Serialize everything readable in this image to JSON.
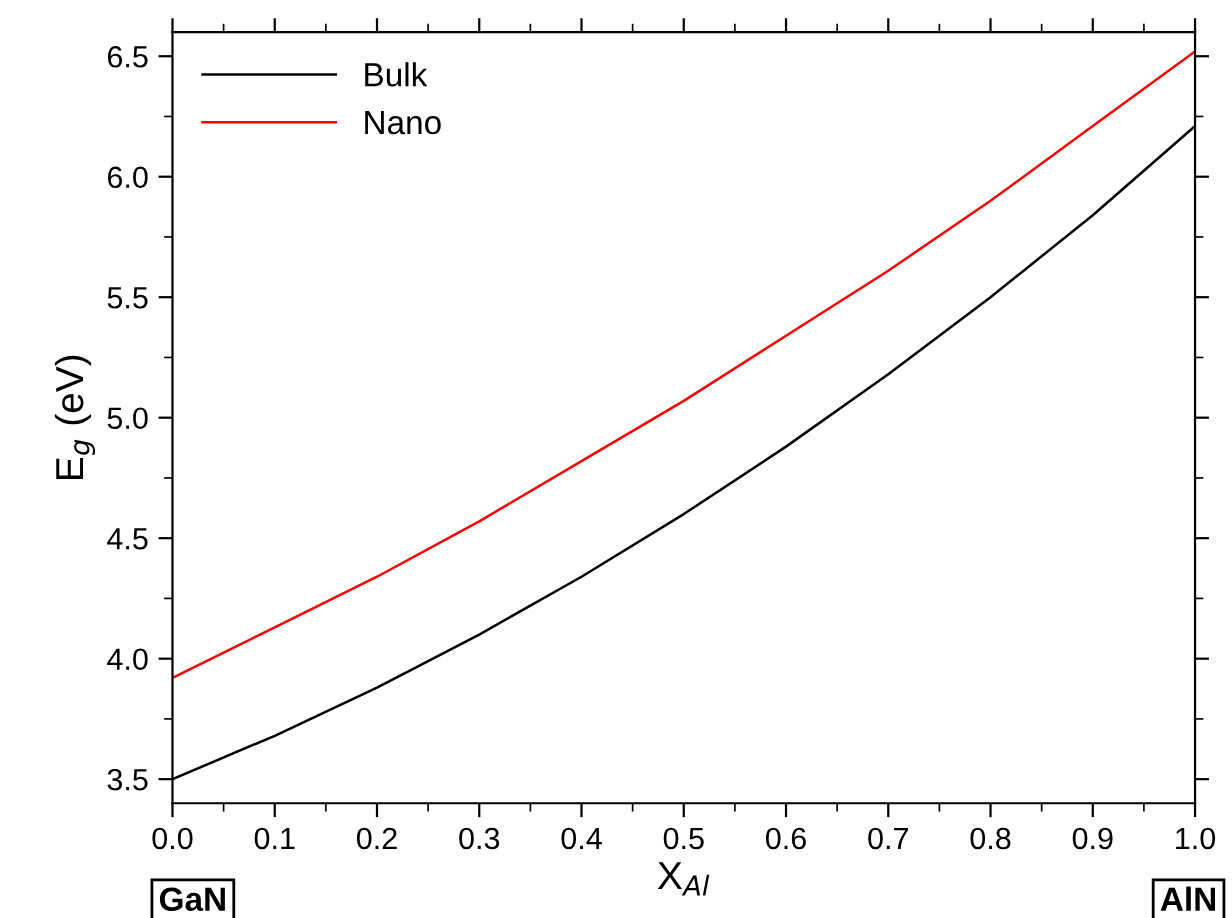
{
  "chart_data": {
    "type": "line",
    "xlabel": "X$_{Al}$",
    "ylabel": "E$_{g}$ (eV)",
    "x": [
      0,
      0.1,
      0.2,
      0.3,
      0.4,
      0.5,
      0.6,
      0.7,
      0.8,
      0.9,
      1.0
    ],
    "series": [
      {
        "name": "Bulk",
        "color": "#000000",
        "values": [
          3.5,
          3.68,
          3.88,
          4.1,
          4.34,
          4.6,
          4.88,
          5.18,
          5.5,
          5.84,
          6.21
        ]
      },
      {
        "name": "Nano",
        "color": "#ff0000",
        "values": [
          3.92,
          4.13,
          4.34,
          4.57,
          4.82,
          5.07,
          5.34,
          5.61,
          5.9,
          6.21,
          6.52
        ]
      }
    ],
    "xlim": [
      0,
      1.0
    ],
    "xticks": [
      {
        "value": 0,
        "label": "0.0"
      },
      0.1,
      0.2,
      0.3,
      0.4,
      0.5,
      0.6,
      0.7,
      0.8,
      0.9,
      {
        "value": 1,
        "label": "1.0"
      }
    ],
    "ylim": [
      3.4,
      6.6
    ],
    "yticks": [
      3.5,
      {
        "value": 4,
        "label": "4.0"
      },
      4.5,
      {
        "value": 5,
        "label": "5.0"
      },
      5.5,
      {
        "value": 6,
        "label": "6.0"
      },
      6.5
    ],
    "annotations": [
      "GaN",
      "AlN"
    ],
    "legend": "top left",
    "grid": false,
    "marker": "none",
    "line_style": "solid"
  }
}
